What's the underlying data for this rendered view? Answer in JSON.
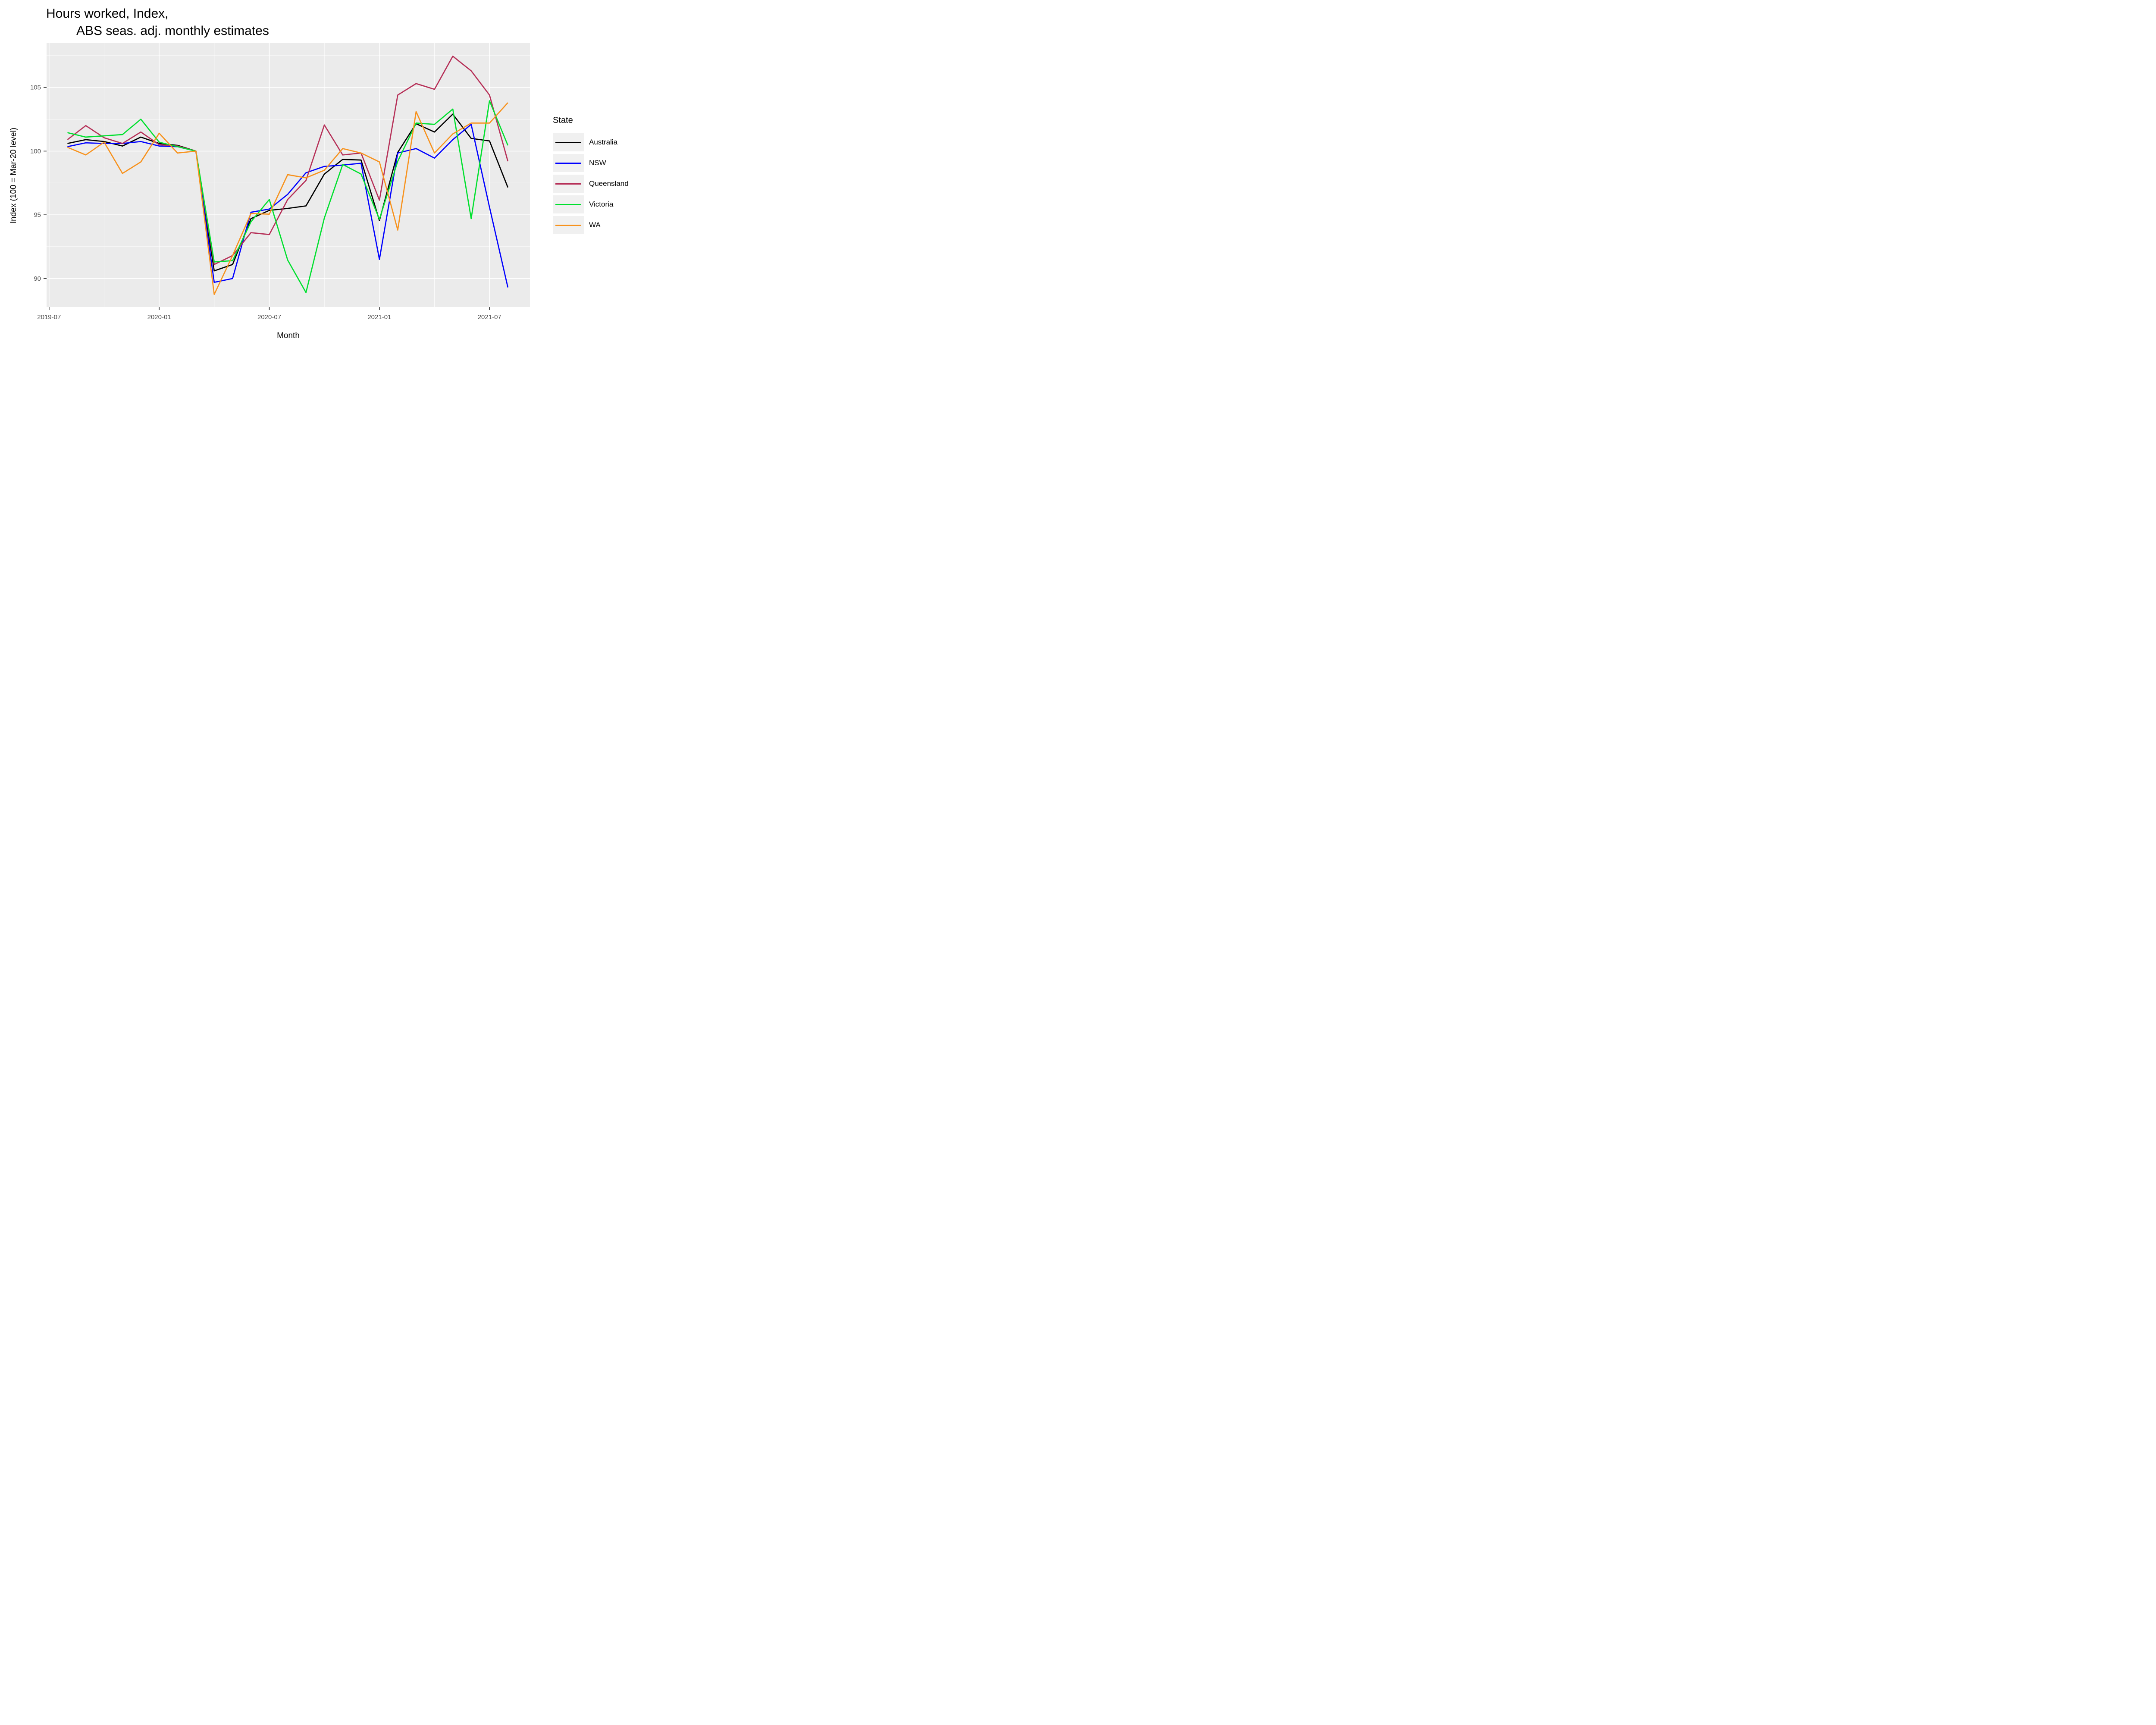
{
  "title": {
    "line1": "Hours worked, Index,",
    "line2": "ABS seas. adj. monthly estimates"
  },
  "axes": {
    "x_label": "Month",
    "y_label": "Index (100 = Mar-20 level)",
    "x_tick_labels": [
      "2019-07",
      "2020-01",
      "2020-07",
      "2021-01",
      "2021-07"
    ],
    "x_tick_months": [
      0,
      6,
      12,
      18,
      24
    ],
    "x_minor_months": [
      3,
      9,
      15,
      21
    ],
    "y_tick_labels": [
      "90",
      "95",
      "100",
      "105"
    ],
    "y_tick_values": [
      90,
      95,
      100,
      105
    ],
    "y_minor_values": [
      92.5,
      97.5,
      102.5,
      107.5
    ]
  },
  "legend": {
    "title": "State"
  },
  "style": {
    "panel_fill": "#ebebeb",
    "grid_color": "#ffffff",
    "tick_mark_color": "#333333",
    "tick_label_color": "#4d4d4d"
  },
  "chart_data": {
    "type": "line",
    "title": "Hours worked, Index, ABS seas. adj. monthly estimates",
    "xlabel": "Month",
    "ylabel": "Index (100 = Mar-20 level)",
    "x": [
      "2019-08",
      "2019-09",
      "2019-10",
      "2019-11",
      "2019-12",
      "2020-01",
      "2020-02",
      "2020-03",
      "2020-04",
      "2020-05",
      "2020-06",
      "2020-07",
      "2020-08",
      "2020-09",
      "2020-10",
      "2020-11",
      "2020-12",
      "2021-01",
      "2021-02",
      "2021-03",
      "2021-04",
      "2021-05",
      "2021-06",
      "2021-07",
      "2021-08"
    ],
    "x_start_month_index": 1,
    "xlim_months": [
      "2019-07",
      "2021-08"
    ],
    "ylim": [
      87.8,
      108.4
    ],
    "grid": true,
    "legend_position": "right",
    "series": [
      {
        "name": "Australia",
        "color": "#000000",
        "values": [
          100.6,
          100.9,
          100.75,
          100.4,
          101.1,
          100.6,
          100.45,
          100.0,
          90.6,
          91.1,
          94.7,
          95.35,
          95.5,
          95.7,
          98.2,
          99.35,
          99.3,
          94.55,
          99.9,
          102.15,
          101.5,
          102.9,
          101.0,
          100.8,
          97.15
        ]
      },
      {
        "name": "NSW",
        "color": "#0000ff",
        "values": [
          100.35,
          100.65,
          100.6,
          100.6,
          100.75,
          100.4,
          100.35,
          100.0,
          89.7,
          90.0,
          95.2,
          95.45,
          96.6,
          98.3,
          98.8,
          98.9,
          99.05,
          91.5,
          99.85,
          100.2,
          99.45,
          100.9,
          102.1,
          95.6,
          89.3
        ]
      },
      {
        "name": "Queensland",
        "color": "#b63058",
        "values": [
          100.9,
          102.0,
          101.05,
          100.6,
          101.5,
          100.5,
          100.4,
          100.0,
          91.1,
          91.8,
          93.6,
          93.45,
          96.2,
          97.7,
          102.05,
          99.7,
          99.85,
          96.15,
          104.4,
          105.3,
          104.85,
          107.45,
          106.3,
          104.4,
          99.2
        ]
      },
      {
        "name": "Victoria",
        "color": "#00e02e",
        "values": [
          101.45,
          101.1,
          101.2,
          101.3,
          102.5,
          100.7,
          100.35,
          100.0,
          91.3,
          91.4,
          94.45,
          96.2,
          91.45,
          88.9,
          94.75,
          98.95,
          98.2,
          94.65,
          99.2,
          102.2,
          102.1,
          103.3,
          94.7,
          103.95,
          100.45
        ]
      },
      {
        "name": "WA",
        "color": "#f7921d",
        "values": [
          100.3,
          99.7,
          100.7,
          98.25,
          99.15,
          101.4,
          99.85,
          100.0,
          88.75,
          91.8,
          95.1,
          95.05,
          98.15,
          97.9,
          98.5,
          100.2,
          99.85,
          99.15,
          93.8,
          103.1,
          99.85,
          101.35,
          102.2,
          102.2,
          103.8
        ]
      }
    ]
  }
}
